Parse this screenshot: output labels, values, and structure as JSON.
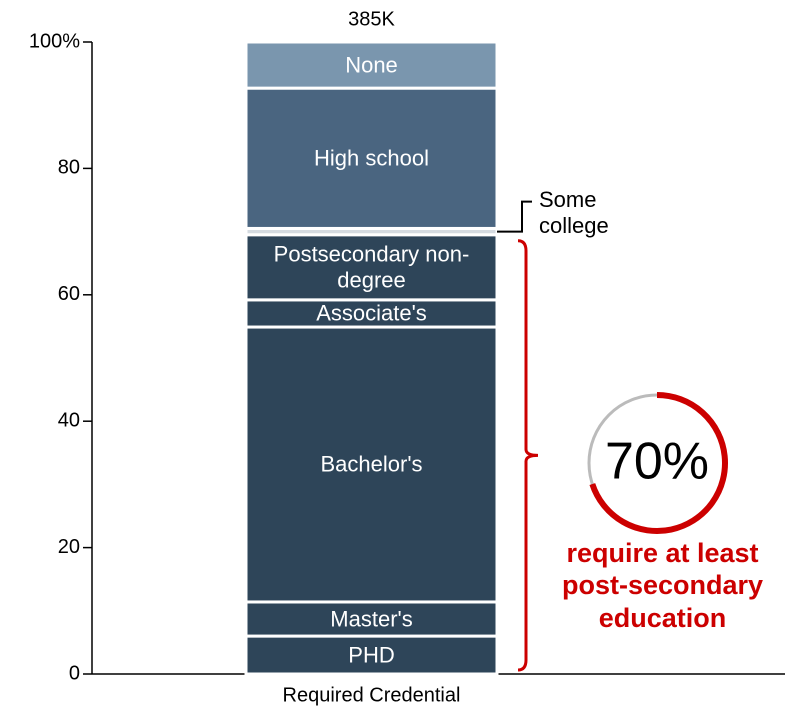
{
  "chart_data": {
    "type": "stacked-bar",
    "categories": [
      "Required Credential"
    ],
    "bar_label": "385K",
    "series": [
      {
        "name": "PHD",
        "color": "#2e4559",
        "values": [
          6.0
        ]
      },
      {
        "name": "Master's",
        "color": "#2e4559",
        "values": [
          5.4
        ]
      },
      {
        "name": "Bachelor's",
        "color": "#2e4559",
        "values": [
          43.5
        ]
      },
      {
        "name": "Associate's",
        "color": "#2e4559",
        "values": [
          4.3
        ]
      },
      {
        "name": "Postsecondary non-degree",
        "color": "#2e4559",
        "values": [
          10.3
        ]
      },
      {
        "name": "Some college",
        "color": "#d5dbe1",
        "values": [
          1.0
        ]
      },
      {
        "name": "High school",
        "color": "#4a6580",
        "values": [
          22.2
        ]
      },
      {
        "name": "None",
        "color": "#7a96ae",
        "values": [
          7.3
        ]
      }
    ],
    "ylim": [
      0,
      100
    ],
    "yticks": [
      0,
      20,
      40,
      60,
      80,
      {
        "value": 100,
        "label": "100%"
      }
    ],
    "annotation": {
      "value": 70,
      "label": "70%",
      "text": "require at least post-secondary education",
      "color": "#cc0000"
    }
  }
}
